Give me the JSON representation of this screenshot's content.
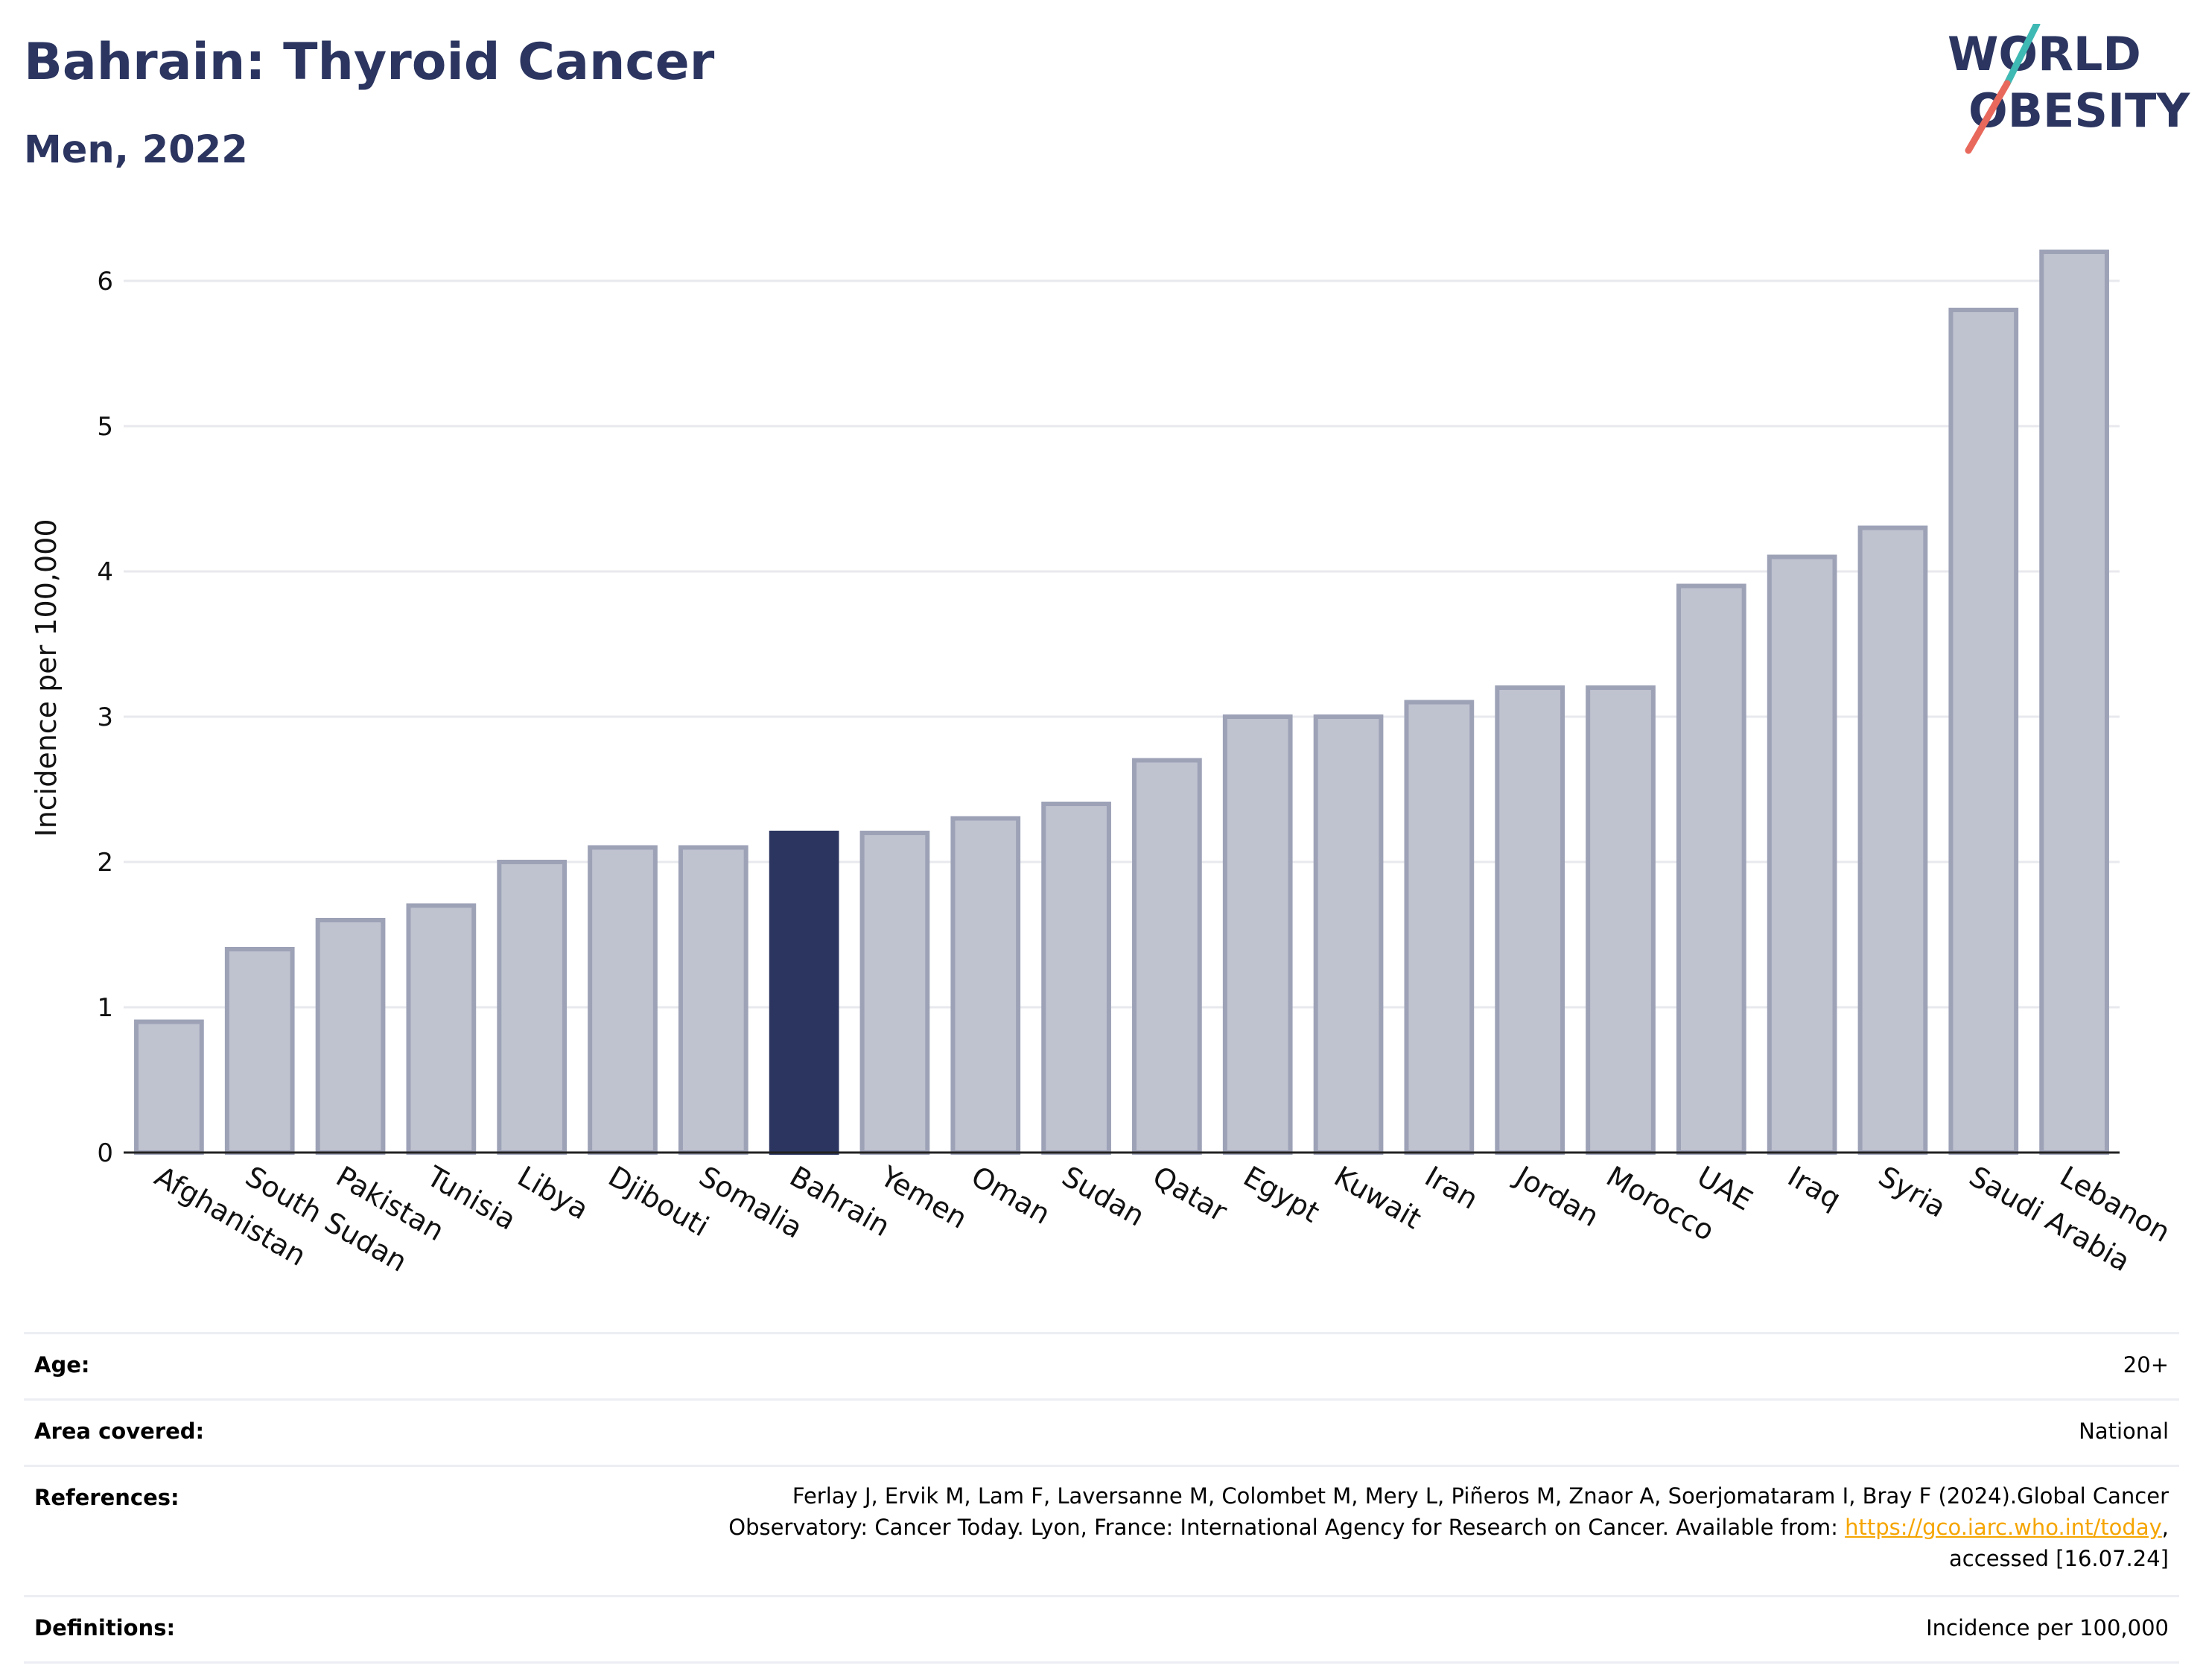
{
  "header": {
    "title": "Bahrain: Thyroid Cancer",
    "subtitle": "Men, 2022"
  },
  "logo": {
    "line1": "WORLD",
    "line2": "OBESITY",
    "slash_colors": [
      "#3fb9b4",
      "#e8695c"
    ],
    "text_color": "#2b3560"
  },
  "chart_data": {
    "type": "bar",
    "categories": [
      "Afghanistan",
      "South Sudan",
      "Pakistan",
      "Tunisia",
      "Libya",
      "Djibouti",
      "Somalia",
      "Bahrain",
      "Yemen",
      "Oman",
      "Sudan",
      "Qatar",
      "Egypt",
      "Kuwait",
      "Iran",
      "Jordan",
      "Morocco",
      "UAE",
      "Iraq",
      "Syria",
      "Saudi Arabia",
      "Lebanon"
    ],
    "values": [
      0.9,
      1.4,
      1.6,
      1.7,
      2.0,
      2.1,
      2.1,
      2.2,
      2.2,
      2.3,
      2.4,
      2.7,
      3.0,
      3.0,
      3.1,
      3.2,
      3.2,
      3.9,
      4.1,
      4.3,
      5.8,
      6.2
    ],
    "highlight": "Bahrain",
    "xlabel": "",
    "ylabel": "Incidence per 100,000",
    "ylim": [
      0,
      6.5
    ],
    "yticks": [
      0,
      1,
      2,
      3,
      4,
      5,
      6
    ],
    "grid": true,
    "colors": {
      "bar_fill": "#bfc2cf",
      "bar_stroke": "#9da2b7",
      "highlight": "#2b3560",
      "grid": "#e8e9ee",
      "axis": "#222222"
    }
  },
  "meta": {
    "rows": [
      {
        "label": "Age:",
        "value": "20+"
      },
      {
        "label": "Area covered:",
        "value": "National"
      },
      {
        "label": "References:",
        "value_line1": "Ferlay J, Ervik M, Lam F, Laversanne M, Colombet M, Mery L, Piñeros M, Znaor A, Soerjomataram I, Bray F (2024).Global Cancer",
        "value_line2": "Observatory: Cancer Today. Lyon, France: International Agency for Research on Cancer. Available from: ",
        "link_text": "https://gco.iarc.who.int/today",
        "value_line2_end": ",",
        "value_line3": "accessed [16.07.24]"
      },
      {
        "label": "Definitions:",
        "value": "Incidence per 100,000"
      }
    ]
  }
}
